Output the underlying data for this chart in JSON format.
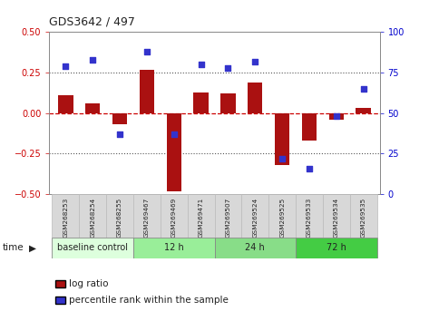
{
  "title": "GDS3642 / 497",
  "samples": [
    "GSM268253",
    "GSM268254",
    "GSM268255",
    "GSM269467",
    "GSM269469",
    "GSM269471",
    "GSM269507",
    "GSM269524",
    "GSM269525",
    "GSM269533",
    "GSM269534",
    "GSM269535"
  ],
  "log_ratio": [
    0.11,
    0.06,
    -0.07,
    0.27,
    -0.48,
    0.13,
    0.12,
    0.19,
    -0.32,
    -0.17,
    -0.04,
    0.03
  ],
  "percentile_rank": [
    79,
    83,
    37,
    88,
    37,
    80,
    78,
    82,
    22,
    16,
    48,
    65
  ],
  "ylim_left": [
    -0.5,
    0.5
  ],
  "ylim_right": [
    0,
    100
  ],
  "bar_color": "#AA1111",
  "dot_color": "#3333CC",
  "hline_color": "#CC0000",
  "dotted_color": "#555555",
  "groups": [
    {
      "label": "baseline control",
      "start": 0,
      "end": 3,
      "color": "#ddffdd"
    },
    {
      "label": "12 h",
      "start": 3,
      "end": 6,
      "color": "#99ee99"
    },
    {
      "label": "24 h",
      "start": 6,
      "end": 9,
      "color": "#88dd88"
    },
    {
      "label": "72 h",
      "start": 9,
      "end": 12,
      "color": "#44cc44"
    }
  ],
  "legend_log_ratio": "log ratio",
  "legend_percentile": "percentile rank within the sample",
  "time_label": "time",
  "bg_color": "#ffffff",
  "tick_label_color_left": "#CC0000",
  "tick_label_color_right": "#0000CC",
  "bar_width": 0.55
}
